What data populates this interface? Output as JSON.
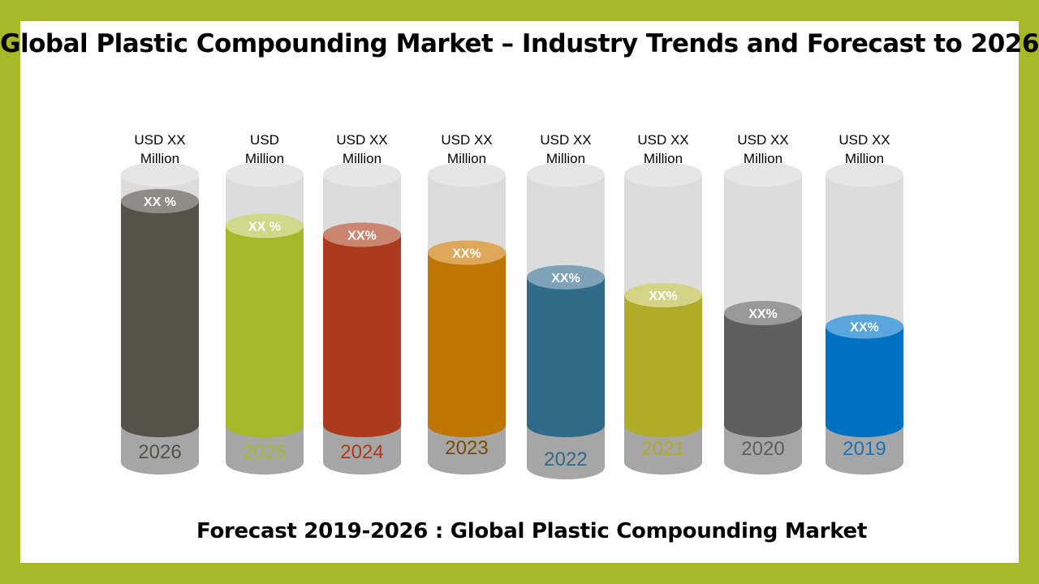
{
  "title": "Global Plastic Compounding Market – Industry Trends and Forecast to 2026",
  "subtitle": "Forecast 2019-2026 : Global Plastic Compounding Market",
  "chart_data": {
    "type": "bar",
    "title": "Global Plastic Compounding Market – Industry Trends and Forecast to 2026",
    "categories": [
      "2026",
      "2025",
      "2024",
      "2023",
      "2022",
      "2021",
      "2020",
      "2019"
    ],
    "values": [
      100,
      89,
      85,
      77,
      66,
      58,
      50,
      44
    ],
    "ylim": [
      0,
      100
    ],
    "bar_style": "cylinder",
    "value_labels": [
      [
        "USD  XX",
        "Million"
      ],
      [
        "USD",
        "Million"
      ],
      [
        "USD  XX",
        "Million"
      ],
      [
        "USD XX",
        "Million"
      ],
      [
        "USD  XX",
        "Million"
      ],
      [
        "USD  XX",
        "Million"
      ],
      [
        "USD  XX",
        "Million"
      ],
      [
        "USD  XX",
        "Million"
      ]
    ],
    "percent_labels": [
      "XX %",
      "XX   %",
      "XX%",
      "XX%",
      "XX%",
      "XX%",
      "XX%",
      "XX%"
    ],
    "colors": [
      "#545246",
      "#a5b82a",
      "#ab3b1c",
      "#bf7502",
      "#306a89",
      "#b0ab28",
      "#5e5e5e",
      "#0070c0"
    ],
    "top_colors": [
      "#8e8c84",
      "#cfd98a",
      "#cb8672",
      "#dfa75a",
      "#7ea2b8",
      "#d5d385",
      "#999999",
      "#5aa5dc"
    ],
    "year_colors": [
      "#545246",
      "#a5b82a",
      "#ab3b1c",
      "#7a4a05",
      "#306a89",
      "#b0ab28",
      "#5e5e5e",
      "#1a73b8"
    ],
    "track_color": "#dcdcdc",
    "base_color": "#a6a6a6",
    "grid": false
  }
}
